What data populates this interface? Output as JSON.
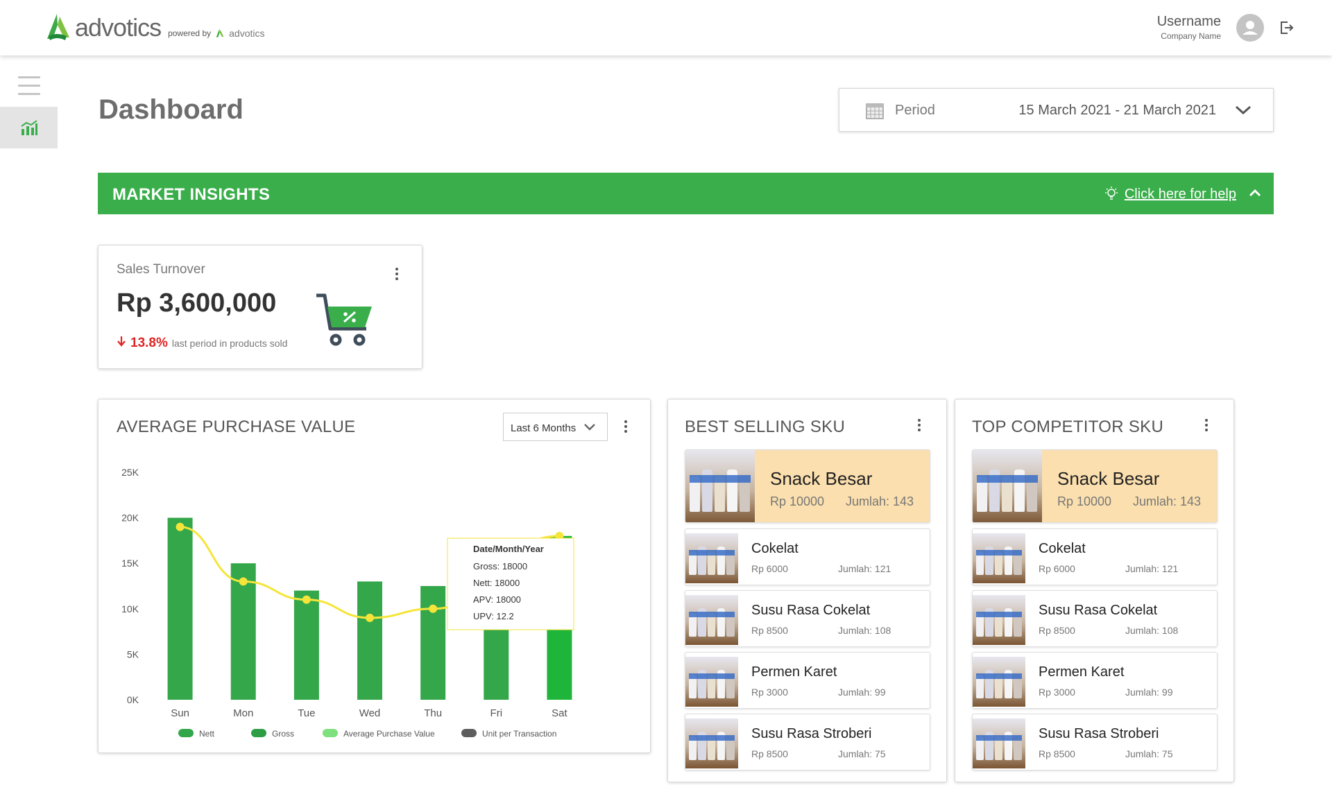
{
  "brand": {
    "name": "advotics",
    "powered_by": "powered by",
    "powered_brand": "advotics",
    "accent": "#39ae4a"
  },
  "user": {
    "username": "Username",
    "company": "Company Name"
  },
  "page": {
    "title": "Dashboard"
  },
  "period": {
    "label": "Period",
    "value": "15 March 2021 - 21 March 2021"
  },
  "banner": {
    "title": "MARKET INSIGHTS",
    "help": "Click here for help"
  },
  "kpi": {
    "label": "Sales Turnover",
    "value": "Rp 3,600,000",
    "change": "13.8%",
    "change_note": "last period in products sold",
    "change_direction": "down",
    "change_color": "#e02424"
  },
  "apv": {
    "title": "AVERAGE PURCHASE VALUE",
    "range": "Last 6 Months",
    "tooltip": {
      "title": "Date/Month/Year",
      "lines": [
        "Gross: 18000",
        "Nett: 18000",
        "APV: 18000",
        "UPV: 12.2"
      ]
    }
  },
  "chart_data": {
    "type": "bar",
    "categories": [
      "Sun",
      "Mon",
      "Tue",
      "Wed",
      "Thu",
      "Fri",
      "Sat"
    ],
    "ylim": [
      0,
      25000
    ],
    "yticks": [
      "0K",
      "5K",
      "10K",
      "15K",
      "20K",
      "25K"
    ],
    "series": [
      {
        "name": "Nett",
        "type": "bar",
        "color": "#34a74a",
        "values": [
          20000,
          15000,
          12000,
          13000,
          12500,
          11000,
          18000
        ]
      },
      {
        "name": "Average Purchase Value",
        "type": "line",
        "color": "#f5e53a",
        "values": [
          19000,
          13000,
          11000,
          9000,
          10000,
          null,
          18000
        ]
      }
    ],
    "legend": [
      {
        "name": "Nett",
        "color": "#34a74a"
      },
      {
        "name": "Gross",
        "color": "#2e9e45"
      },
      {
        "name": "Average Purchase Value",
        "color": "#7ee07e"
      },
      {
        "name": "Unit per Transaction",
        "color": "#5d5d5d"
      }
    ],
    "legend_position": "bottom"
  },
  "best_selling": {
    "title": "BEST SELLING SKU",
    "items": [
      {
        "name": "Snack Besar",
        "price": "Rp 10000",
        "qty": "Jumlah: 143"
      },
      {
        "name": "Cokelat",
        "price": "Rp 6000",
        "qty": "Jumlah: 121"
      },
      {
        "name": "Susu Rasa Cokelat",
        "price": "Rp 8500",
        "qty": "Jumlah: 108"
      },
      {
        "name": "Permen Karet",
        "price": "Rp 3000",
        "qty": "Jumlah: 99"
      },
      {
        "name": "Susu Rasa Stroberi",
        "price": "Rp 8500",
        "qty": "Jumlah: 75"
      }
    ]
  },
  "top_competitor": {
    "title": "TOP COMPETITOR SKU",
    "items": [
      {
        "name": "Snack Besar",
        "price": "Rp 10000",
        "qty": "Jumlah: 143"
      },
      {
        "name": "Cokelat",
        "price": "Rp 6000",
        "qty": "Jumlah: 121"
      },
      {
        "name": "Susu Rasa Cokelat",
        "price": "Rp 8500",
        "qty": "Jumlah: 108"
      },
      {
        "name": "Permen Karet",
        "price": "Rp 3000",
        "qty": "Jumlah: 99"
      },
      {
        "name": "Susu Rasa Stroberi",
        "price": "Rp 8500",
        "qty": "Jumlah: 75"
      }
    ]
  },
  "icons": [
    "advotics-logo-icon",
    "avatar-icon",
    "logout-icon",
    "menu-icon",
    "chart-icon",
    "calendar-icon",
    "chevron-down-icon",
    "lightbulb-icon",
    "chevron-up-icon",
    "more-icon",
    "cart-icon",
    "arrow-down-icon"
  ]
}
